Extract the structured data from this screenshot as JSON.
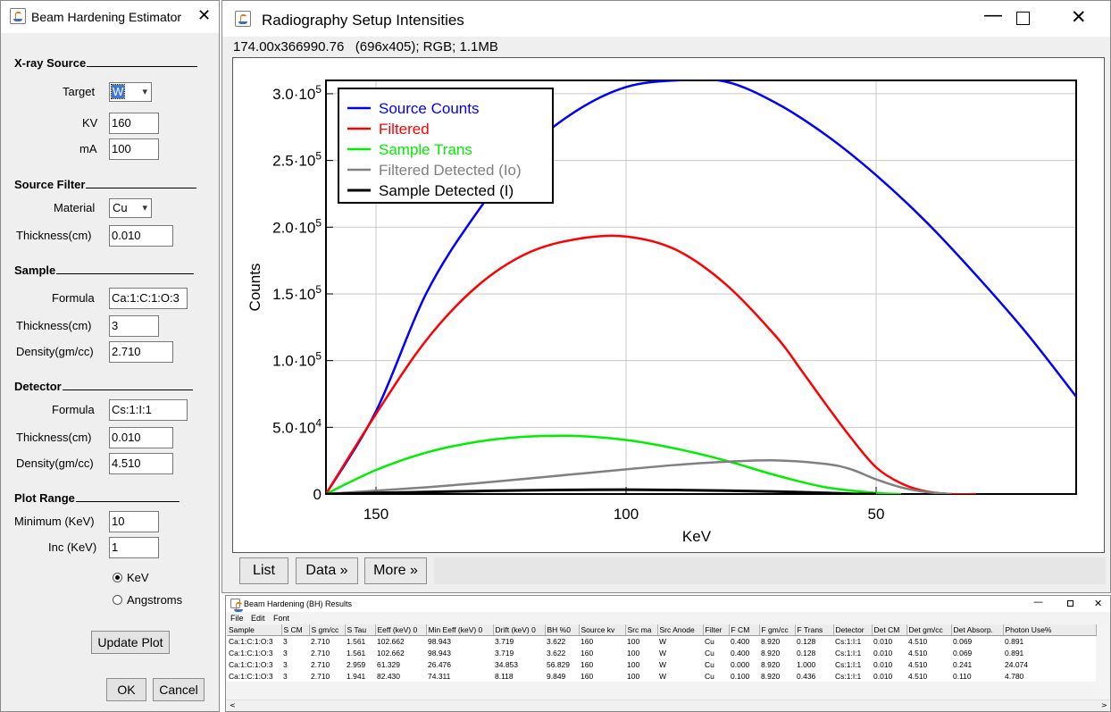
{
  "estimator": {
    "title": "Beam Hardening Estimator",
    "xray_source_heading": "X-ray Source",
    "target_label": "Target",
    "target_value": "W",
    "kv_label": "KV",
    "kv_value": "160",
    "ma_label": "mA",
    "ma_value": "100",
    "source_filter_heading": "Source Filter",
    "material_label": "Material",
    "material_value": "Cu",
    "filter_thickness_label": "Thickness(cm)",
    "filter_thickness_value": "0.010",
    "sample_heading": "Sample",
    "sample_formula_label": "Formula",
    "sample_formula_value": "Ca:1:C:1:O:3",
    "sample_thickness_label": "Thickness(cm)",
    "sample_thickness_value": "3",
    "sample_density_label": "Density(gm/cc)",
    "sample_density_value": "2.710",
    "detector_heading": "Detector",
    "detector_formula_label": "Formula",
    "detector_formula_value": "Cs:1:I:1",
    "detector_thickness_label": "Thickness(cm)",
    "detector_thickness_value": "0.010",
    "detector_density_label": "Density(gm/cc)",
    "detector_density_value": "4.510",
    "plot_range_heading": "Plot Range",
    "minimum_label": "Minimum (KeV)",
    "minimum_value": "10",
    "inc_label": "Inc (KeV)",
    "inc_value": "1",
    "radio_kev": "KeV",
    "radio_angstroms": "Angstroms",
    "selected_unit": "KeV",
    "update_plot": "Update Plot",
    "ok": "OK",
    "cancel": "Cancel"
  },
  "plot_window": {
    "title": "Radiography Setup Intensities",
    "info": "174.00x366990.76   (696x405); RGB; 1.1MB",
    "buttons": {
      "list": "List",
      "data": "Data »",
      "more": "More »"
    }
  },
  "chart_data": {
    "type": "line",
    "xlabel": "KeV",
    "ylabel": "Counts",
    "x_reversed": true,
    "xlim": [
      10,
      160
    ],
    "ylim": [
      0,
      310000
    ],
    "x_ticks": [
      150,
      100,
      50
    ],
    "y_ticks": [
      {
        "value": 0,
        "label": "0",
        "exp": ""
      },
      {
        "value": 50000,
        "label": "5.0·10",
        "exp": "4"
      },
      {
        "value": 100000,
        "label": "1.0·10",
        "exp": "5"
      },
      {
        "value": 150000,
        "label": "1.5·10",
        "exp": "5"
      },
      {
        "value": 200000,
        "label": "2.0·10",
        "exp": "5"
      },
      {
        "value": 250000,
        "label": "2.5·10",
        "exp": "5"
      },
      {
        "value": 300000,
        "label": "3.0·10",
        "exp": "5"
      }
    ],
    "grid": true,
    "legend_position": "top-left",
    "series": [
      {
        "name": "Source Counts",
        "color": "#0000ff",
        "x": [
          160,
          150,
          140,
          130,
          120,
          110,
          100,
          90,
          80,
          70,
          60,
          50,
          40,
          30,
          20,
          10
        ],
        "y": [
          0,
          62000,
          150000,
          210000,
          257000,
          287000,
          305000,
          310000,
          309000,
          293000,
          269000,
          239000,
          204000,
          164000,
          121000,
          73000
        ]
      },
      {
        "name": "Filtered",
        "color": "#ff0000",
        "x": [
          160,
          150,
          140,
          130,
          120,
          110,
          100,
          90,
          80,
          70,
          65,
          60,
          55,
          50,
          45,
          40,
          35,
          30
        ],
        "y": [
          0,
          60000,
          115000,
          155000,
          180000,
          191000,
          193000,
          183000,
          157000,
          118000,
          93000,
          67000,
          42000,
          20000,
          8000,
          2000,
          0,
          0
        ]
      },
      {
        "name": "Sample Trans",
        "color": "#00ee00",
        "x": [
          160,
          150,
          140,
          130,
          120,
          110,
          100,
          90,
          80,
          70,
          60,
          50,
          45
        ],
        "y": [
          0,
          18000,
          31000,
          39000,
          43000,
          43500,
          40500,
          34000,
          25000,
          14000,
          5000,
          800,
          0
        ]
      },
      {
        "name": "Filtered Detected (Io)",
        "color": "#808080",
        "x": [
          160,
          150,
          140,
          130,
          120,
          110,
          100,
          90,
          80,
          70,
          60,
          55,
          50,
          45,
          40,
          35
        ],
        "y": [
          0,
          2500,
          5000,
          8000,
          11500,
          15000,
          18500,
          21800,
          24200,
          25200,
          22500,
          18500,
          11000,
          5000,
          1500,
          0
        ]
      },
      {
        "name": "Sample Detected (I)",
        "color": "#000000",
        "x": [
          160,
          150,
          140,
          130,
          120,
          110,
          100,
          90,
          80,
          70,
          60,
          55,
          50
        ],
        "y": [
          0,
          800,
          1500,
          2200,
          2800,
          3100,
          3300,
          3000,
          2500,
          1800,
          800,
          200,
          0
        ]
      }
    ]
  },
  "results": {
    "title": "Beam Hardening (BH) Results",
    "menu": [
      "File",
      "Edit",
      "Font"
    ],
    "columns": [
      "Sample",
      "S CM",
      "S gm/cc",
      "S Tau",
      "Eeff (keV) 0",
      "Min Eeff (keV) 0",
      "Drift (keV) 0",
      "BH %0",
      "Source kv",
      "Src ma",
      "Src Anode",
      "Filter",
      "F CM",
      "F gm/cc",
      "F Trans",
      "Detector",
      "Det CM",
      "Det gm/cc",
      "Det Absorp.",
      "Photon Use%"
    ],
    "rows": [
      [
        "Ca:1:C:1:O:3",
        "3",
        "2.710",
        "1.561",
        "102.662",
        "98.943",
        "3.719",
        "3.622",
        "160",
        "100",
        "W",
        "Cu",
        "0.400",
        "8.920",
        "0.128",
        "Cs:1:I:1",
        "0.010",
        "4.510",
        "0.069",
        "0.891"
      ],
      [
        "Ca:1:C:1:O:3",
        "3",
        "2.710",
        "1.561",
        "102.662",
        "98.943",
        "3.719",
        "3.622",
        "160",
        "100",
        "W",
        "Cu",
        "0.400",
        "8.920",
        "0.128",
        "Cs:1:I:1",
        "0.010",
        "4.510",
        "0.069",
        "0.891"
      ],
      [
        "Ca:1:C:1:O:3",
        "3",
        "2.710",
        "2.959",
        "61.329",
        "26.476",
        "34.853",
        "56.829",
        "160",
        "100",
        "W",
        "Cu",
        "0.000",
        "8.920",
        "1.000",
        "Cs:1:I:1",
        "0.010",
        "4.510",
        "0.241",
        "24.074"
      ],
      [
        "Ca:1:C:1:O:3",
        "3",
        "2.710",
        "1.941",
        "82.430",
        "74.311",
        "8.118",
        "9.849",
        "160",
        "100",
        "W",
        "Cu",
        "0.100",
        "8.920",
        "0.436",
        "Cs:1:I:1",
        "0.010",
        "4.510",
        "0.110",
        "4.780"
      ]
    ]
  }
}
